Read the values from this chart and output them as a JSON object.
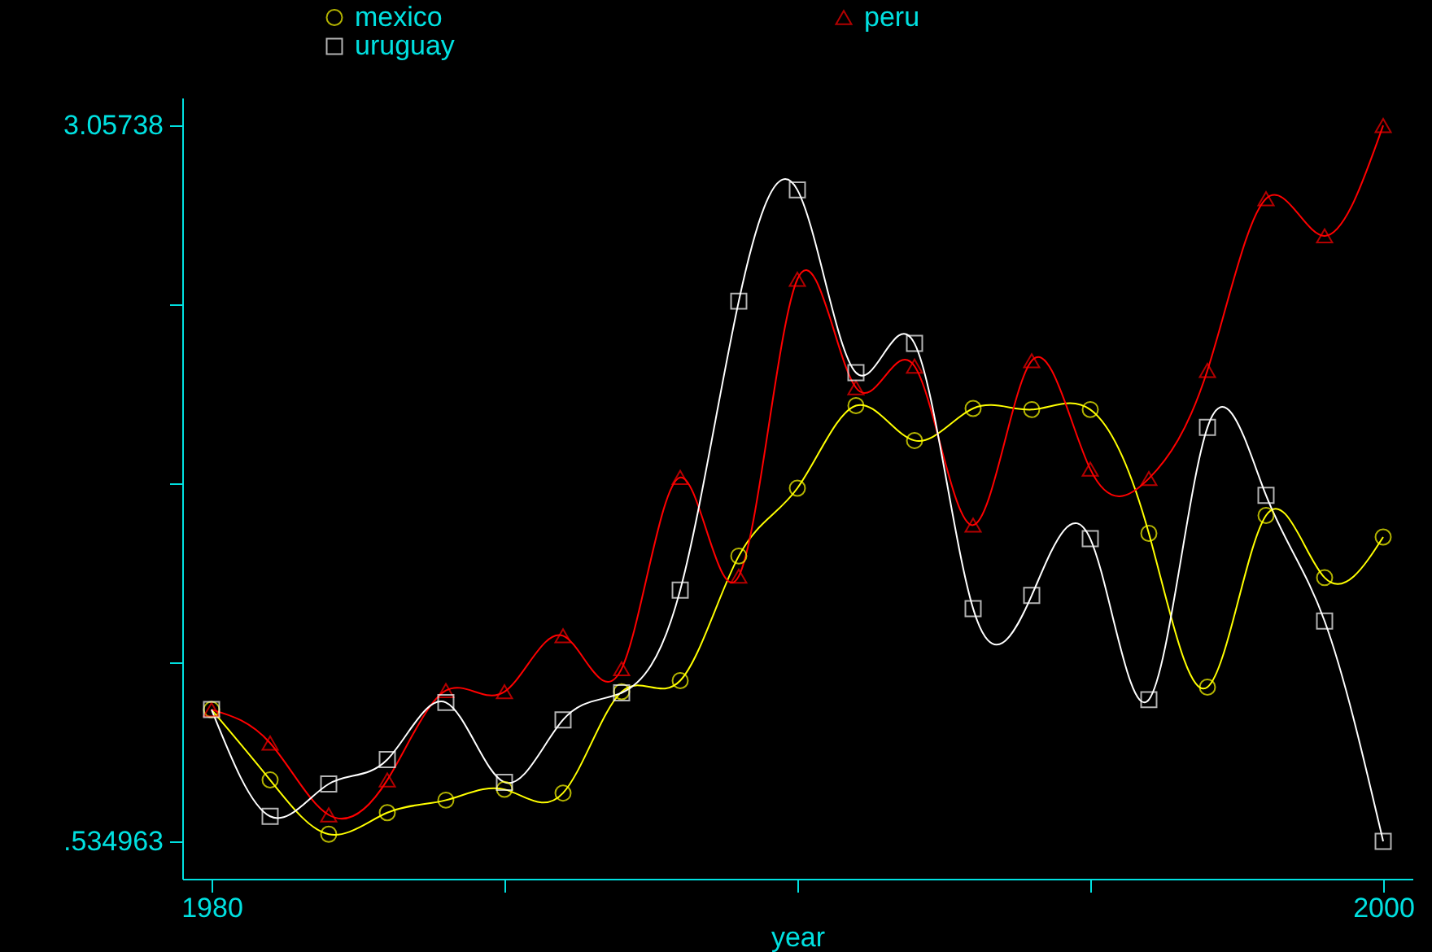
{
  "chart_data": {
    "type": "line",
    "xlabel": "year",
    "x": [
      1980,
      1981,
      1982,
      1983,
      1984,
      1985,
      1986,
      1987,
      1988,
      1989,
      1990,
      1991,
      1992,
      1993,
      1994,
      1995,
      1996,
      1997,
      1998,
      1999,
      2000
    ],
    "series": [
      {
        "name": "mexico",
        "color": "#ffff00",
        "marker": "circle",
        "values": [
          0.999,
          0.751,
          0.56,
          0.636,
          0.68,
          0.718,
          0.705,
          1.062,
          1.101,
          1.54,
          1.779,
          2.07,
          1.947,
          2.06,
          2.056,
          2.056,
          1.62,
          1.078,
          1.683,
          1.464,
          1.607
        ]
      },
      {
        "name": "peru",
        "color": "#ff0000",
        "marker": "triangle",
        "values": [
          0.999,
          0.881,
          0.628,
          0.751,
          1.066,
          1.062,
          1.259,
          1.143,
          1.817,
          1.469,
          2.515,
          2.133,
          2.209,
          1.649,
          2.228,
          1.846,
          1.813,
          2.194,
          2.799,
          2.668,
          3.057
        ]
      },
      {
        "name": "uruguay",
        "color": "#ffffff",
        "marker": "square",
        "values": [
          0.999,
          0.623,
          0.737,
          0.823,
          1.024,
          0.743,
          0.963,
          1.058,
          1.42,
          2.438,
          2.83,
          2.186,
          2.289,
          1.355,
          1.401,
          1.601,
          1.034,
          1.993,
          1.754,
          1.311,
          0.535
        ]
      }
    ],
    "xlim": [
      1979.5,
      2000.5
    ],
    "xticks": [
      1980,
      {
        "value": 1985,
        "label": null
      },
      {
        "value": 1990,
        "label": null
      },
      {
        "value": 1995,
        "label": null
      },
      2000
    ],
    "ylim": [
      0.403,
      3.155
    ],
    "yticks": [
      {
        "value": 0.534963,
        "label": ".534963"
      },
      {
        "value": 1.16557,
        "label": null
      },
      {
        "value": 1.79617,
        "label": null
      },
      {
        "value": 2.42678,
        "label": null
      },
      {
        "value": 3.05738,
        "label": "3.05738"
      }
    ],
    "legend": "top",
    "grid": false
  }
}
